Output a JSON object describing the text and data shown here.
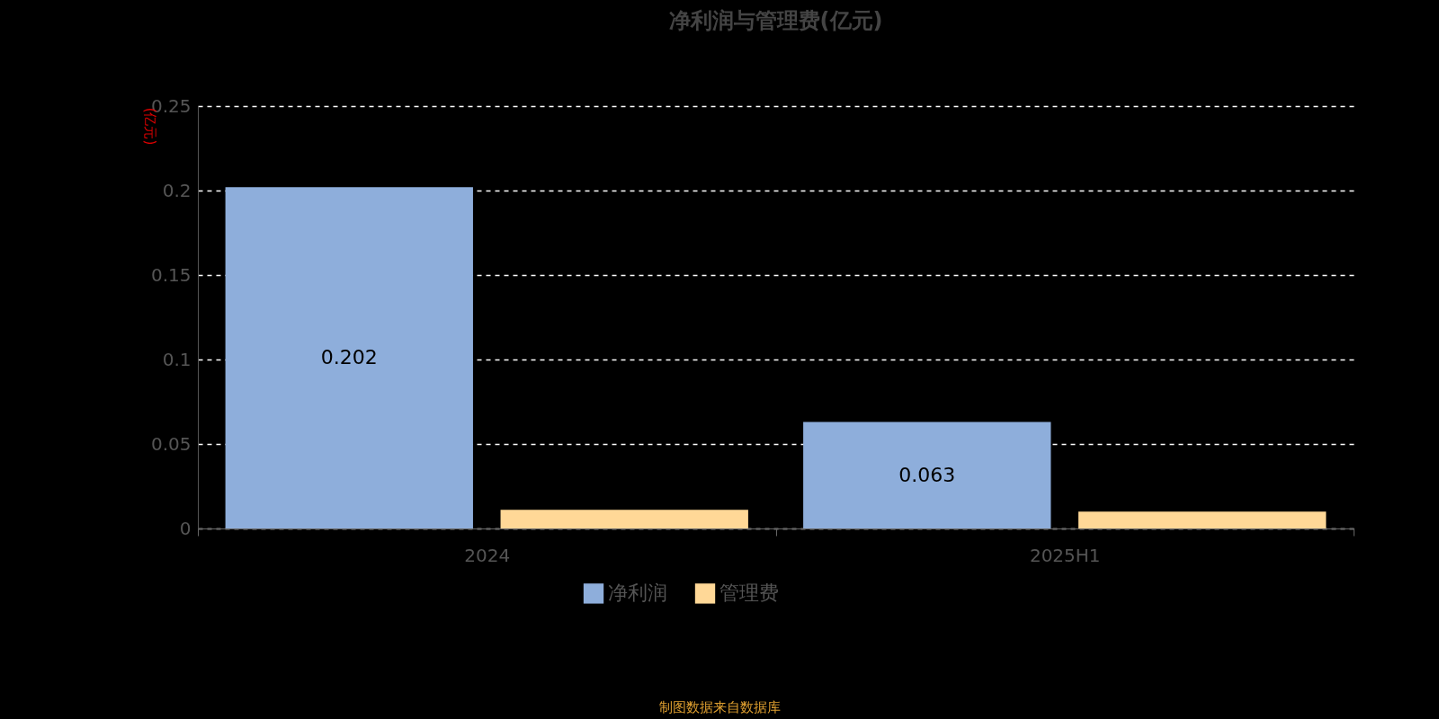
{
  "chart_data": {
    "type": "bar",
    "title": "净利润与管理费(亿元)",
    "ylabel": "(亿元)",
    "categories": [
      "2024",
      "2025H1"
    ],
    "series": [
      {
        "name": "净利润",
        "color": "#8eaedb",
        "values": [
          0.202,
          0.063
        ],
        "value_labels": [
          "0.202",
          "0.063"
        ]
      },
      {
        "name": "管理费",
        "color": "#ffd897",
        "values": [
          0.011,
          0.01
        ]
      }
    ],
    "ylim": [
      0,
      0.25
    ],
    "yticks": [
      0,
      0.05,
      0.1,
      0.15,
      0.2,
      0.25
    ],
    "grid": "y",
    "legend": "bottom",
    "annotations": [
      "制图数据来自数据库"
    ]
  }
}
